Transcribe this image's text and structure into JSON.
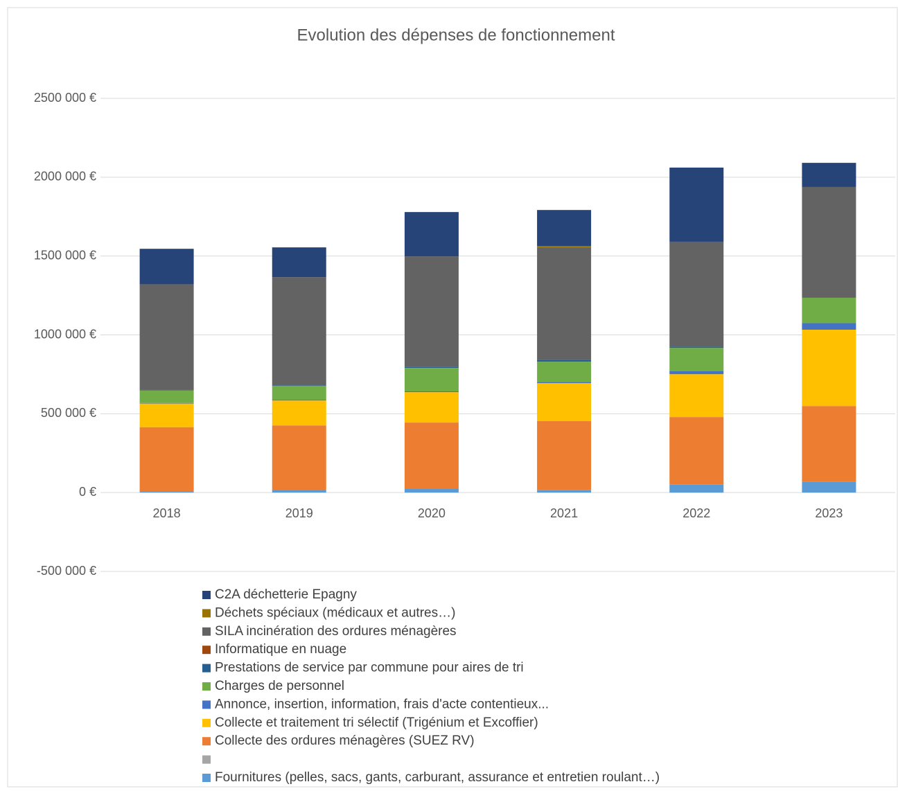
{
  "chart_data": {
    "type": "stacked_bar",
    "title": "Evolution des dépenses de fonctionnement",
    "categories": [
      "2018",
      "2019",
      "2020",
      "2021",
      "2022",
      "2023"
    ],
    "ylim": [
      -500000,
      2500000
    ],
    "yticks": [
      {
        "value": -500000,
        "label": "-500 000 €"
      },
      {
        "value": 0,
        "label": "0 €"
      },
      {
        "value": 500000,
        "label": "500 000 €"
      },
      {
        "value": 1000000,
        "label": "1000 000 €"
      },
      {
        "value": 1500000,
        "label": "1500 000 €"
      },
      {
        "value": 2000000,
        "label": "2000 000 €"
      },
      {
        "value": 2500000,
        "label": "2500 000 €"
      }
    ],
    "grid": true,
    "legend": "bottom",
    "series": [
      {
        "name": "Fournitures (pelles, sacs, gants, carburant, assurance et entretien roulant…)",
        "color": "#5b9bd5",
        "values": [
          5000,
          18000,
          25000,
          15000,
          50000,
          70000
        ]
      },
      {
        "name": null,
        "color": "#a5a5a5",
        "values": [
          0,
          0,
          0,
          0,
          0,
          0
        ]
      },
      {
        "name": "Collecte des ordures ménagères (SUEZ RV)",
        "color": "#ed7d31",
        "values": [
          410000,
          408000,
          419000,
          438000,
          429000,
          479000
        ]
      },
      {
        "name": "Collecte et traitement tri sélectif (Trigénium et Excoffier)",
        "color": "#ffc000",
        "values": [
          150000,
          158000,
          193000,
          241000,
          272000,
          484000
        ]
      },
      {
        "name": "Annonce, insertion, information, frais d'acte contentieux...",
        "color": "#4472c4",
        "values": [
          3000,
          5000,
          5000,
          8000,
          20000,
          42000
        ]
      },
      {
        "name": "Charges de personnel",
        "color": "#70ad47",
        "values": [
          80000,
          88000,
          149000,
          128000,
          147000,
          160000
        ]
      },
      {
        "name": "Prestations de service par commune pour aires de tri",
        "color": "#255e91",
        "values": [
          3000,
          3000,
          8000,
          10000,
          8000,
          3000
        ]
      },
      {
        "name": "Informatique en nuage",
        "color": "#9e480e",
        "values": [
          0,
          0,
          0,
          0,
          0,
          0
        ]
      },
      {
        "name": "SILA incinération des ordures ménagères",
        "color": "#636363",
        "values": [
          670000,
          686000,
          699000,
          715000,
          665000,
          700000
        ]
      },
      {
        "name": "Déchets spéciaux (médicaux et autres…)",
        "color": "#997300",
        "values": [
          0,
          0,
          0,
          8000,
          0,
          0
        ]
      },
      {
        "name": "C2A déchetterie Epagny",
        "color": "#264478",
        "values": [
          225000,
          189000,
          281000,
          229000,
          470000,
          153000
        ]
      }
    ]
  }
}
